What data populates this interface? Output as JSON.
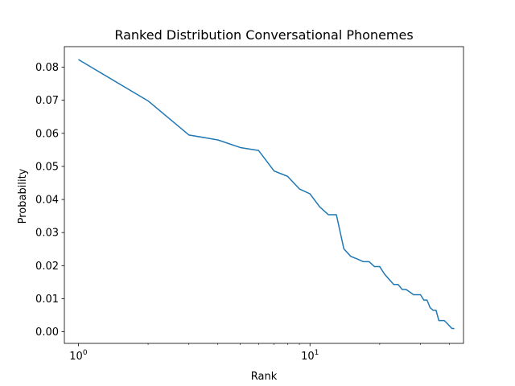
{
  "chart_data": {
    "type": "line",
    "title": "Ranked Distribution Conversational Phonemes",
    "xlabel": "Rank",
    "ylabel": "Probability",
    "xscale": "log",
    "xlim": [
      0.87,
      46
    ],
    "ylim": [
      -0.0035,
      0.0862
    ],
    "x_ticks": [
      {
        "value": 1,
        "base": "10",
        "exp": "0"
      },
      {
        "value": 10,
        "base": "10",
        "exp": "1"
      }
    ],
    "x_minor_ticks": [
      2,
      3,
      4,
      5,
      6,
      7,
      8,
      9,
      20,
      30,
      40
    ],
    "y_ticks": [
      0.0,
      0.01,
      0.02,
      0.03,
      0.04,
      0.05,
      0.06,
      0.07,
      0.08
    ],
    "y_tick_labels": [
      "0.00",
      "0.01",
      "0.02",
      "0.03",
      "0.04",
      "0.05",
      "0.06",
      "0.07",
      "0.08"
    ],
    "grid": false,
    "series": [
      {
        "color": "#1f77b4",
        "x": [
          1,
          2,
          3,
          4,
          5,
          6,
          7,
          8,
          9,
          10,
          11,
          12,
          13,
          14,
          15,
          16,
          17,
          18,
          19,
          20,
          21,
          22,
          23,
          24,
          25,
          26,
          27,
          28,
          29,
          30,
          31,
          32,
          33,
          34,
          35,
          36,
          37,
          38,
          39,
          40,
          41,
          42
        ],
        "y": [
          0.0823,
          0.0698,
          0.0595,
          0.058,
          0.0557,
          0.0548,
          0.0486,
          0.047,
          0.0432,
          0.0417,
          0.0378,
          0.0354,
          0.0354,
          0.0251,
          0.0228,
          0.022,
          0.0212,
          0.0212,
          0.0197,
          0.0197,
          0.0174,
          0.0158,
          0.0143,
          0.0143,
          0.0128,
          0.0128,
          0.012,
          0.0112,
          0.0112,
          0.0112,
          0.0096,
          0.0096,
          0.0073,
          0.0065,
          0.0065,
          0.0034,
          0.0034,
          0.0034,
          0.0026,
          0.0018,
          0.001,
          0.001
        ]
      }
    ]
  }
}
